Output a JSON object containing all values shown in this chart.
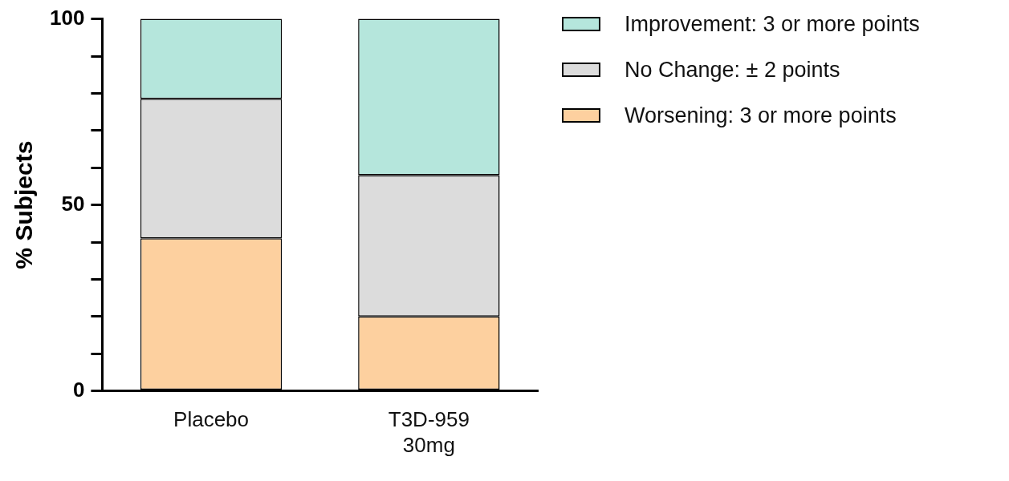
{
  "chart_data": {
    "type": "bar",
    "ylabel": "% Subjects",
    "categories": [
      "Placebo",
      "T3D-959\n30mg"
    ],
    "stacked": true,
    "series": [
      {
        "name": "Worsening: 3 or more points",
        "color": "#fdd09f",
        "values": [
          41,
          20
        ]
      },
      {
        "name": "No Change: ± 2 points",
        "color": "#dcdcdc",
        "values": [
          37.5,
          38
        ]
      },
      {
        "name": "Improvement: 3 or more points",
        "color": "#b5e6dc",
        "values": [
          21.5,
          42
        ]
      }
    ],
    "ylim": [
      0,
      100
    ],
    "yticks": [
      0,
      {
        "value": 10,
        "label": null
      },
      {
        "value": 20,
        "label": null
      },
      {
        "value": 30,
        "label": null
      },
      {
        "value": 40,
        "label": null
      },
      50,
      {
        "value": 60,
        "label": null
      },
      {
        "value": 70,
        "label": null
      },
      {
        "value": 80,
        "label": null
      },
      {
        "value": 90,
        "label": null
      },
      100
    ],
    "grid": false,
    "legend": "top right"
  }
}
